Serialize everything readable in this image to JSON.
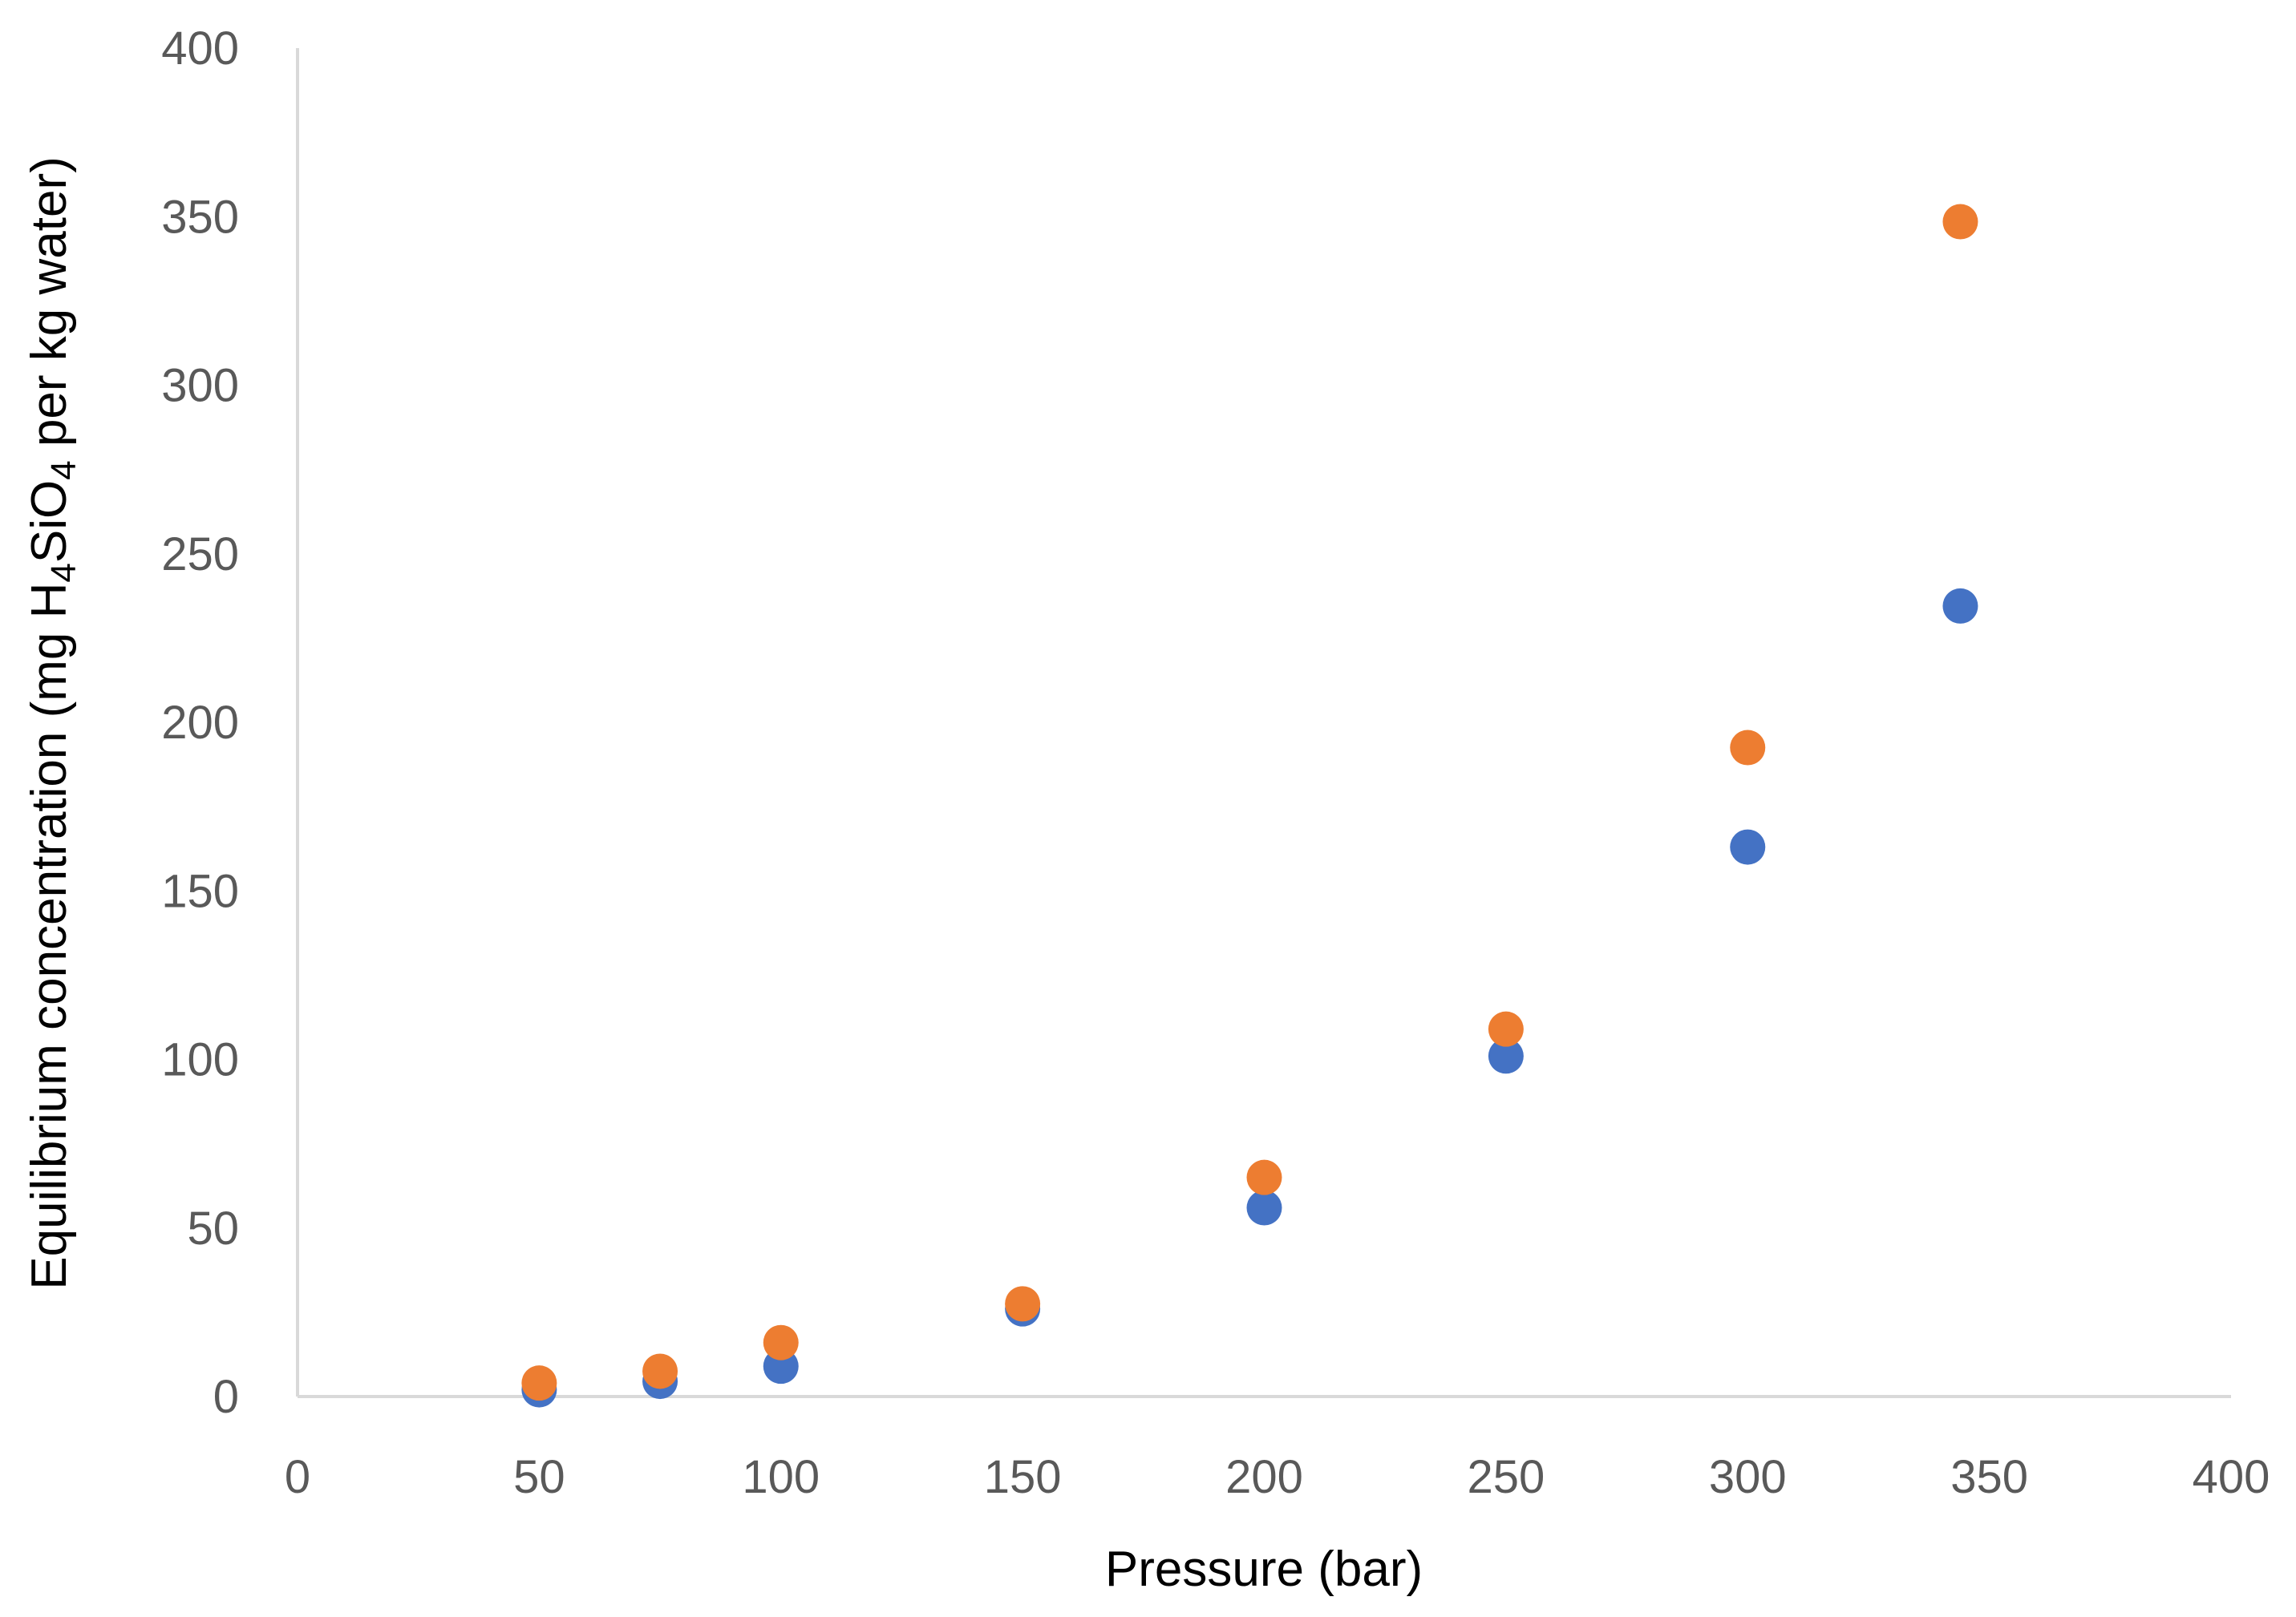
{
  "chart_data": {
    "type": "scatter",
    "xlabel": "Pressure (bar)",
    "ylabel": {
      "parts": [
        {
          "text": "Equilibrium concentration (mg H"
        },
        {
          "text": "4",
          "sub": true
        },
        {
          "text": "SiO"
        },
        {
          "text": "4",
          "sub": true
        },
        {
          "text": " per kg water)"
        }
      ]
    },
    "xlim": [
      0,
      400
    ],
    "ylim": [
      0,
      400
    ],
    "x_ticks": [
      "0",
      "50",
      "100",
      "150",
      "200",
      "250",
      "300",
      "350",
      "400"
    ],
    "y_ticks": [
      "0",
      "50",
      "100",
      "150",
      "200",
      "250",
      "300",
      "350",
      "400"
    ],
    "grid": false,
    "legend": "none",
    "series": [
      {
        "color": "#4472C4",
        "points": [
          {
            "x": 50,
            "y": 2
          },
          {
            "x": 75,
            "y": 4.5
          },
          {
            "x": 100,
            "y": 9
          },
          {
            "x": 150,
            "y": 26
          },
          {
            "x": 200,
            "y": 56
          },
          {
            "x": 250,
            "y": 101
          },
          {
            "x": 300,
            "y": 163
          },
          {
            "x": 344,
            "y": 234.5
          }
        ]
      },
      {
        "color": "#ED7D31",
        "points": [
          {
            "x": 50,
            "y": 4
          },
          {
            "x": 75,
            "y": 7.5
          },
          {
            "x": 100,
            "y": 16
          },
          {
            "x": 150,
            "y": 27.5
          },
          {
            "x": 200,
            "y": 65
          },
          {
            "x": 250,
            "y": 109
          },
          {
            "x": 300,
            "y": 192.5
          },
          {
            "x": 344,
            "y": 348.5
          }
        ]
      }
    ]
  }
}
